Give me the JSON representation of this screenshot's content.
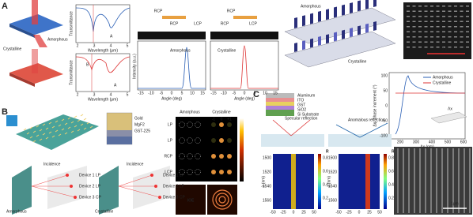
{
  "panel_a": {
    "label": "A",
    "illustration_labels": [
      "Amorphous",
      "Crystalline"
    ],
    "spectra": {
      "y_label": "Transmittance",
      "x_label": "Wavelength (μm)",
      "x_ticks": [
        "2",
        "3",
        "4",
        "5"
      ],
      "markers": [
        "A",
        "B"
      ]
    },
    "farfield": {
      "beams": [
        "RCP",
        "RCP",
        "LCP"
      ],
      "titles": [
        "Amorphous",
        "Crystalline"
      ],
      "y_label": "Intensity (a.u.)",
      "x_label": "Angle (deg)",
      "x_ticks": [
        "-15",
        "-10",
        "-5",
        "0",
        "5",
        "10",
        "15"
      ]
    },
    "metadevice": {
      "labels": [
        "Amorphous",
        "Crystalline"
      ],
      "scale": "3 μm"
    },
    "phase_plot": {
      "y_label": "Δφ, phase increment (°)",
      "x_label": "Λx (nm)",
      "legend": [
        "Amorphous",
        "Crystalline"
      ],
      "x_ticks": [
        "200",
        "300",
        "400",
        "500",
        "600"
      ],
      "y_ticks": [
        "100",
        "50",
        "0",
        "-50",
        "-100"
      ],
      "annotation": "Λx"
    }
  },
  "panel_b": {
    "label": "B",
    "layers": [
      "Gold",
      "MgF2",
      "GST-225"
    ],
    "incidence": "Incidence",
    "states": [
      "Amorphous",
      "Crystalline"
    ],
    "devices": [
      "Device 1 LP",
      "Device 2 LP",
      "Device 3 CP"
    ],
    "grid_titles": [
      "Amorphous",
      "Crystalline"
    ],
    "row_labels": [
      "LP",
      "LP",
      "RCP",
      "LCP"
    ],
    "orders": [
      "-1",
      "0",
      "+1"
    ],
    "image_text": "IOE"
  },
  "panel_c": {
    "label": "C",
    "layers": [
      "Aluminum",
      "ITO",
      "GST",
      "SiO2",
      "Si Substrate"
    ],
    "reflections": [
      "Specular reflection",
      "Anomalous reflection"
    ],
    "colorbar_label": "R",
    "y_label": "λ (nm)",
    "y_ticks": [
      "1500",
      "1520",
      "1540",
      "1560"
    ],
    "x_ticks": [
      "-50",
      "-25",
      "0",
      "25",
      "50"
    ],
    "colorbar_ticks": [
      "0.8",
      "0.6",
      "0.4",
      "0.2"
    ],
    "scale_bar": "1μm"
  }
}
